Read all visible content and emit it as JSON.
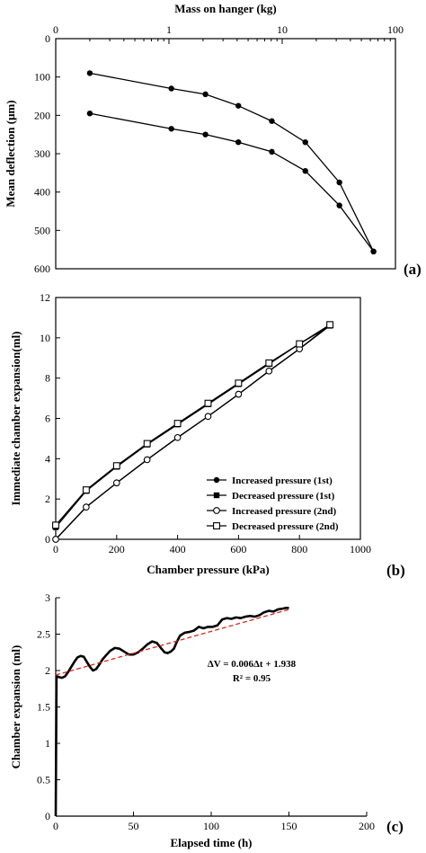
{
  "chart_data": [
    {
      "type": "line",
      "panel_label": "(a)",
      "xlabel": "Mass on hanger (kg)",
      "ylabel": "Mean deflection (μm)",
      "x_scale": "log",
      "x_axis_position": "top",
      "y_inverted": true,
      "xlim": [
        0.1,
        100
      ],
      "ylim": [
        0,
        600
      ],
      "x_ticks": [
        "0",
        "1",
        "10",
        "100"
      ],
      "y_ticks": [
        "0",
        "100",
        "200",
        "300",
        "400",
        "500",
        "600"
      ],
      "series": [
        {
          "x": [
            0.2,
            1.05,
            2.1,
            4.1,
            8.1,
            16,
            32,
            64
          ],
          "y": [
            90,
            130,
            145,
            175,
            215,
            270,
            375,
            555
          ]
        },
        {
          "x": [
            0.2,
            1.05,
            2.1,
            4.1,
            8.1,
            16,
            32,
            64
          ],
          "y": [
            195,
            235,
            250,
            270,
            295,
            345,
            435,
            555
          ]
        }
      ]
    },
    {
      "type": "line",
      "panel_label": "(b)",
      "xlabel": "Chamber pressure (kPa)",
      "ylabel": "Immediate chamber expansion(ml)",
      "xlim": [
        0,
        1000
      ],
      "ylim": [
        0,
        12
      ],
      "x_ticks": [
        "0",
        "200",
        "400",
        "600",
        "800",
        "1000"
      ],
      "y_ticks": [
        "0",
        "2",
        "4",
        "6",
        "8",
        "10",
        "12"
      ],
      "legend_position": "bottom-right",
      "series": [
        {
          "name": "Increased pressure (1st)",
          "marker": "filled-circle",
          "x": [
            0,
            100,
            200,
            300,
            400,
            500,
            600,
            700,
            800,
            900
          ],
          "y": [
            0,
            1.6,
            2.8,
            3.95,
            5.05,
            6.1,
            7.2,
            8.35,
            9.45,
            10.6
          ]
        },
        {
          "name": "Decreased pressure (1st)",
          "marker": "filled-square",
          "x": [
            0,
            100,
            200,
            300,
            400,
            500,
            600,
            700,
            800,
            900
          ],
          "y": [
            0.6,
            2.4,
            3.6,
            4.7,
            5.7,
            6.7,
            7.7,
            8.7,
            9.7,
            10.6
          ]
        },
        {
          "name": "Increased pressure (2nd)",
          "marker": "open-circle",
          "x": [
            0,
            100,
            200,
            300,
            400,
            500,
            600,
            700,
            800,
            900
          ],
          "y": [
            0,
            1.6,
            2.8,
            3.95,
            5.05,
            6.1,
            7.2,
            8.35,
            9.45,
            10.65
          ]
        },
        {
          "name": "Decreased pressure (2nd)",
          "marker": "open-square",
          "x": [
            0,
            100,
            200,
            300,
            400,
            500,
            600,
            700,
            800,
            900
          ],
          "y": [
            0.7,
            2.45,
            3.65,
            4.75,
            5.75,
            6.75,
            7.75,
            8.75,
            9.7,
            10.65
          ]
        }
      ]
    },
    {
      "type": "line",
      "panel_label": "(c)",
      "xlabel": "Elapsed time (h)",
      "ylabel": "Chamber expansion (ml)",
      "xlim": [
        0,
        200
      ],
      "ylim": [
        0,
        3
      ],
      "x_ticks": [
        "0",
        "50",
        "100",
        "150",
        "200"
      ],
      "y_ticks": [
        "0",
        "0.5",
        "1",
        "1.5",
        "2",
        "2.5",
        "3"
      ],
      "annotation": {
        "equation": "ΔV = 0.006Δt + 1.938",
        "r2": "R² = 0.95"
      },
      "trendline": {
        "slope": 0.006,
        "intercept": 1.938,
        "x_range": [
          0,
          150
        ]
      },
      "series": [
        {
          "x": [
            0,
            0.5,
            1,
            2,
            4,
            6,
            8,
            10,
            12,
            14,
            16,
            18,
            20,
            22,
            24,
            26,
            28,
            30,
            32,
            35,
            38,
            41,
            44,
            47,
            50,
            53,
            56,
            59,
            62,
            65,
            68,
            70,
            72,
            74,
            76,
            78,
            80,
            83,
            86,
            89,
            92,
            95,
            98,
            101,
            104,
            107,
            110,
            113,
            116,
            119,
            122,
            125,
            128,
            131,
            134,
            137,
            140,
            143,
            146,
            148,
            150
          ],
          "y": [
            0,
            1.9,
            1.92,
            1.91,
            1.9,
            1.92,
            1.98,
            2.05,
            2.12,
            2.18,
            2.2,
            2.19,
            2.12,
            2.05,
            2.0,
            2.02,
            2.08,
            2.15,
            2.2,
            2.27,
            2.31,
            2.3,
            2.26,
            2.22,
            2.22,
            2.25,
            2.3,
            2.36,
            2.4,
            2.38,
            2.3,
            2.25,
            2.24,
            2.26,
            2.3,
            2.4,
            2.48,
            2.52,
            2.53,
            2.55,
            2.6,
            2.58,
            2.6,
            2.6,
            2.62,
            2.7,
            2.72,
            2.71,
            2.73,
            2.72,
            2.74,
            2.75,
            2.74,
            2.76,
            2.8,
            2.82,
            2.81,
            2.84,
            2.85,
            2.86,
            2.86
          ]
        }
      ]
    }
  ]
}
